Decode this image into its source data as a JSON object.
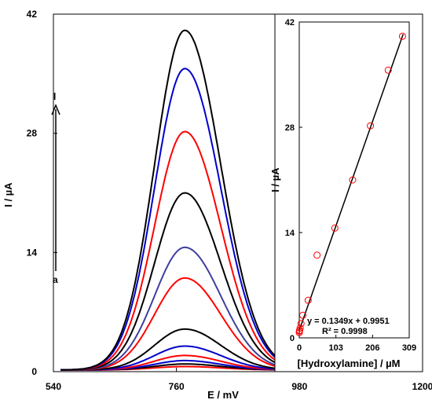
{
  "chart_data": [
    {
      "type": "line",
      "xlabel": "E / mV",
      "ylabel": "I / µA",
      "xlim": [
        540,
        1200
      ],
      "ylim": [
        0,
        42
      ],
      "xticks": [
        "540",
        "760",
        "980",
        "1200"
      ],
      "yticks": [
        "0",
        "14",
        "28",
        "42"
      ],
      "grid": false,
      "peak_potential": 775,
      "baseline": 0.2,
      "series": [
        {
          "color": "#ff0000",
          "peak": 0.6
        },
        {
          "color": "#000000",
          "peak": 0.9
        },
        {
          "color": "#0000cc",
          "peak": 1.3
        },
        {
          "color": "#ff0000",
          "peak": 1.9
        },
        {
          "color": "#0000cc",
          "peak": 3.0
        },
        {
          "color": "#000000",
          "peak": 5.0
        },
        {
          "color": "#ff0000",
          "peak": 11.0
        },
        {
          "color": "#3f3f9e",
          "peak": 14.6
        },
        {
          "color": "#000000",
          "peak": 21.0
        },
        {
          "color": "#ff0000",
          "peak": 28.2
        },
        {
          "color": "#0000cc",
          "peak": 35.6
        },
        {
          "color": "#000000",
          "peak": 40.1
        }
      ],
      "arrow_labels": {
        "start": "a",
        "end": "l"
      }
    },
    {
      "type": "scatter",
      "xlabel": "[Hydroxylamine] / µM",
      "ylabel": "I / µA",
      "xlim": [
        0,
        309
      ],
      "ylim": [
        0,
        42
      ],
      "xticks": [
        "0",
        "103",
        "206",
        "309"
      ],
      "yticks": [
        "0",
        "14",
        "28",
        "42"
      ],
      "x": [
        0,
        0.5,
        1,
        2.5,
        5,
        10,
        25,
        50,
        100,
        150,
        200,
        250,
        290
      ],
      "y": [
        0.7,
        0.9,
        1.0,
        1.3,
        1.9,
        3.0,
        5.0,
        11.0,
        14.6,
        21.0,
        28.2,
        35.6,
        40.1
      ],
      "marker_color": "#ff0000",
      "fit": {
        "slope": 0.1349,
        "intercept": 0.9951
      },
      "equation": "y = 0.1349x + 0.9951",
      "r_squared": "R² = 0.9998"
    }
  ]
}
